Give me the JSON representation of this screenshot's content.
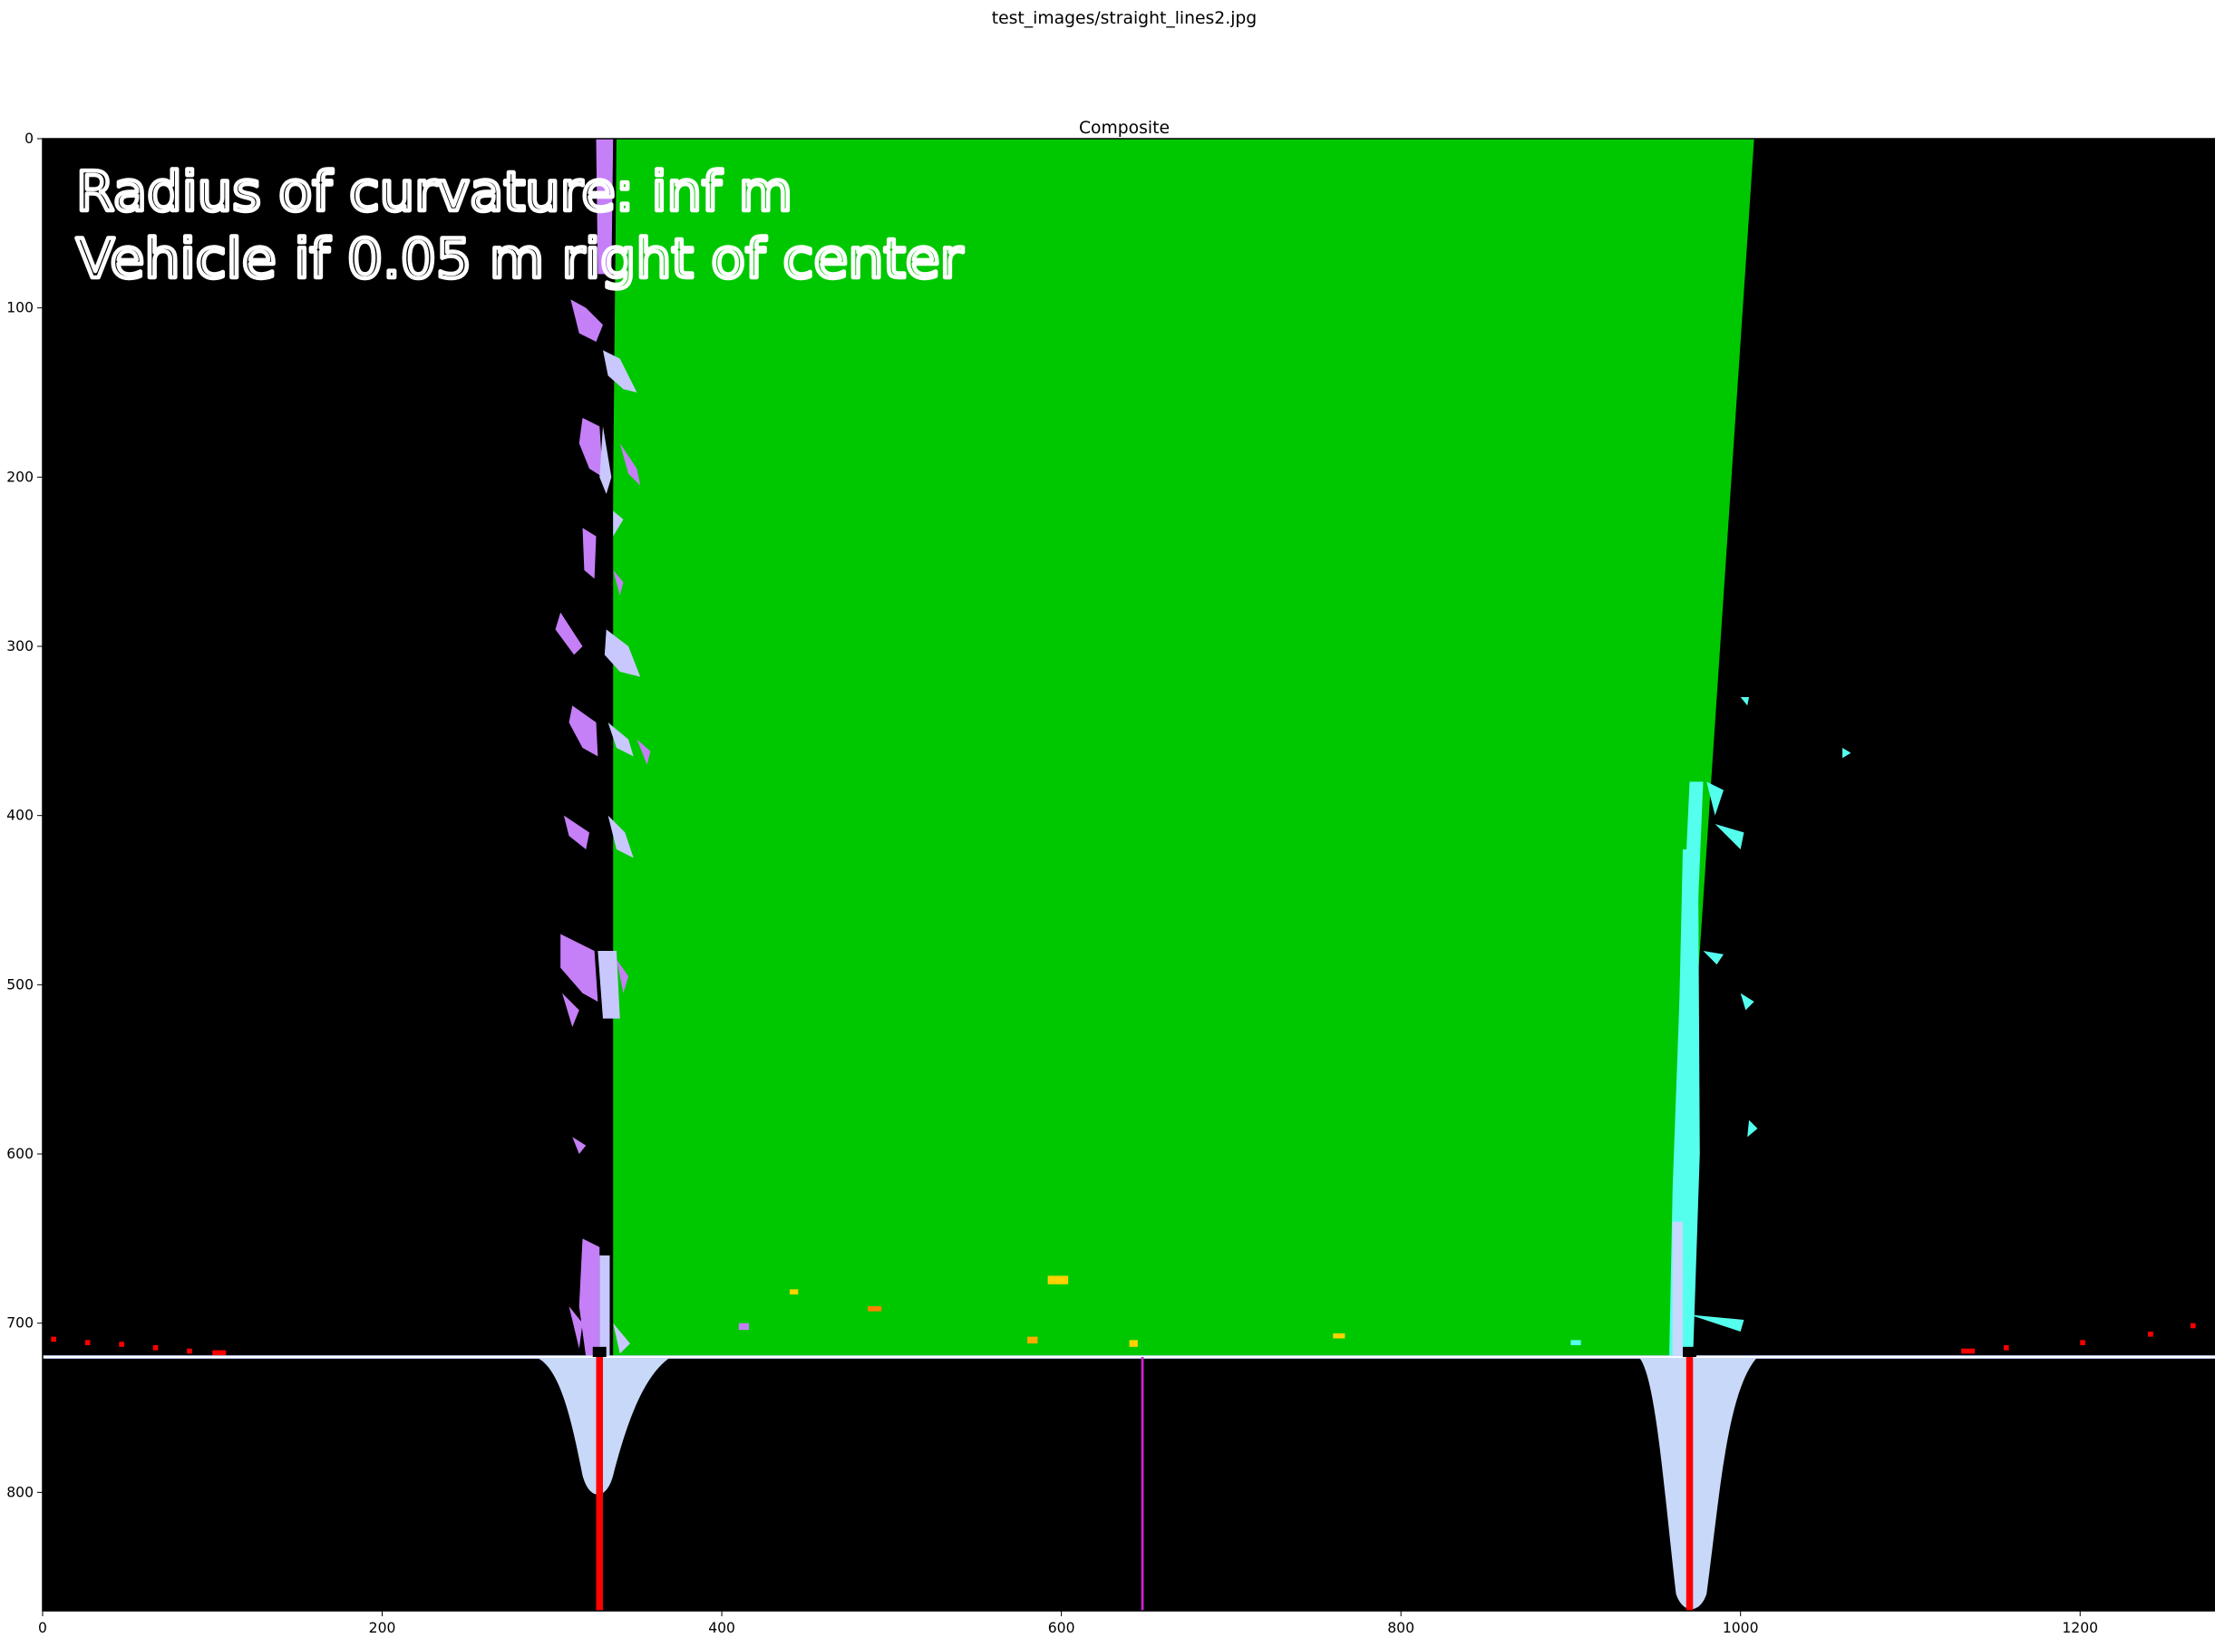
{
  "figure": {
    "suptitle": "test_images/straight_lines2.jpg"
  },
  "axes": {
    "title": "Composite",
    "xlim": [
      0,
      1280
    ],
    "ylim": [
      870,
      0
    ],
    "x_ticks": [
      0,
      200,
      400,
      600,
      800,
      1000,
      1200
    ],
    "y_ticks": [
      0,
      100,
      200,
      300,
      400,
      500,
      600,
      700,
      800
    ]
  },
  "overlay": {
    "line1": "Radius of curvature: inf m",
    "line2": "Vehicle if 0.05 m right of center"
  },
  "image_content": {
    "background_color": "#000000",
    "lane_fill_color": "#00c800",
    "left_lane_pixel_color": "#c57ff7",
    "left_lane_secondary_color": "#c8c8ff",
    "right_lane_pixel_color": "#55ffee",
    "histogram_color": "#c8d8f8",
    "histogram_baseline_color": "#ffffff",
    "lane_base_marker_color": "#ff0000",
    "center_marker_color": "#cc22cc",
    "lane_polygon": {
      "top_left_x": 338,
      "top_right_x": 1008,
      "bottom_left_x": 331,
      "bottom_right_x": 960,
      "top_y": 0,
      "bottom_y": 720
    },
    "left_lane_base_x": 328,
    "right_lane_base_x": 970,
    "image_center_x": 648,
    "histogram_baseline_y": 720,
    "left_histogram_peak_y": 803,
    "right_histogram_peak_y": 870
  }
}
